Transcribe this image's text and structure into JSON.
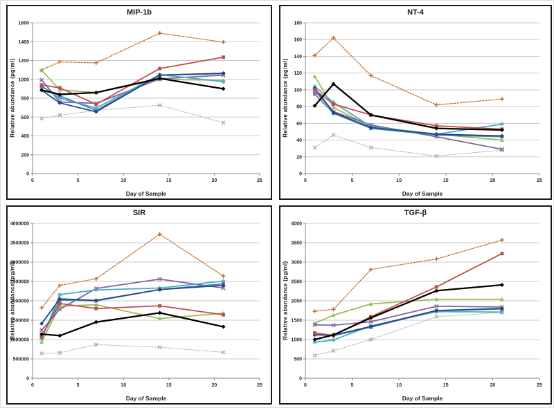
{
  "page": {
    "background": "#ffffff"
  },
  "series_styles": [
    {
      "key": "gray-dashed",
      "color": "#ADADAD",
      "marker": "x",
      "dash": "2,2",
      "width": 1
    },
    {
      "key": "orange-dashed",
      "color": "#BE6A2A",
      "marker": "plus",
      "dash": "2,2",
      "width": 1.3
    },
    {
      "key": "green",
      "color": "#9BBB59",
      "marker": "triangle",
      "dash": "",
      "width": 1.8
    },
    {
      "key": "purple",
      "color": "#8064A2",
      "marker": "x",
      "dash": "",
      "width": 1.8
    },
    {
      "key": "cyan",
      "color": "#4BACC6",
      "marker": "asterisk",
      "dash": "",
      "width": 1.8
    },
    {
      "key": "blue",
      "color": "#4F81BD",
      "marker": "square",
      "dash": "",
      "width": 1.8
    },
    {
      "key": "navy",
      "color": "#1F497D",
      "marker": "diamond",
      "dash": "",
      "width": 1.8
    },
    {
      "key": "red",
      "color": "#C0504D",
      "marker": "square",
      "dash": "",
      "width": 1.8
    },
    {
      "key": "black",
      "color": "#000000",
      "marker": "diamond",
      "dash": "",
      "width": 2.3
    }
  ],
  "chart_data": [
    {
      "type": "line",
      "title": "MIP-1b",
      "xlabel": "Day of Sample",
      "ylabel": "Relative abundance (pg/ml)",
      "x": [
        1,
        3,
        7,
        14,
        21
      ],
      "xlim": [
        0,
        25
      ],
      "xtick_step": 5,
      "ylim": [
        0,
        1600
      ],
      "ytick_step": 200,
      "grid": "horizontal",
      "legend": "none",
      "series": [
        {
          "name": "gray-dashed",
          "values": [
            585,
            620,
            670,
            725,
            540
          ]
        },
        {
          "name": "orange-dashed",
          "values": [
            1100,
            1185,
            1175,
            1490,
            1395
          ]
        },
        {
          "name": "green",
          "values": [
            1095,
            890,
            860,
            1000,
            990
          ]
        },
        {
          "name": "purple",
          "values": [
            995,
            760,
            745,
            1005,
            1045
          ]
        },
        {
          "name": "cyan",
          "values": [
            930,
            800,
            695,
            1050,
            975
          ]
        },
        {
          "name": "blue",
          "values": [
            920,
            825,
            670,
            1045,
            1060
          ]
        },
        {
          "name": "navy",
          "values": [
            885,
            750,
            655,
            1045,
            1065
          ]
        },
        {
          "name": "red",
          "values": [
            940,
            910,
            735,
            1115,
            1235
          ]
        },
        {
          "name": "black",
          "values": [
            885,
            840,
            860,
            1010,
            900
          ]
        }
      ]
    },
    {
      "type": "line",
      "title": "NT-4",
      "xlabel": "Day of Sample",
      "ylabel": "Relative abundance (pg/ml)",
      "x": [
        1,
        3,
        7,
        14,
        21
      ],
      "xlim": [
        0,
        25
      ],
      "xtick_step": 5,
      "ylim": [
        0,
        180
      ],
      "ytick_step": 20,
      "grid": "horizontal",
      "legend": "none",
      "series": [
        {
          "name": "gray-dashed",
          "values": [
            31,
            46,
            31,
            21,
            28
          ]
        },
        {
          "name": "orange-dashed",
          "values": [
            141,
            162,
            117,
            82,
            89
          ]
        },
        {
          "name": "green",
          "values": [
            116,
            79,
            56,
            47,
            40
          ]
        },
        {
          "name": "purple",
          "values": [
            99,
            74,
            58,
            44,
            29
          ]
        },
        {
          "name": "cyan",
          "values": [
            104,
            85,
            56,
            47,
            59
          ]
        },
        {
          "name": "blue",
          "values": [
            95,
            72,
            54,
            46,
            44
          ]
        },
        {
          "name": "navy",
          "values": [
            102,
            73,
            55,
            47,
            45
          ]
        },
        {
          "name": "red",
          "values": [
            100,
            83,
            70,
            57,
            53
          ]
        },
        {
          "name": "black",
          "values": [
            81,
            107,
            70,
            54,
            52
          ]
        }
      ]
    },
    {
      "type": "line",
      "title": "SIR",
      "xlabel": "Day of Sample",
      "ylabel": "Relative abundance (pg/ml)",
      "x": [
        1,
        3,
        7,
        14,
        21
      ],
      "xlim": [
        0,
        25
      ],
      "xtick_step": 5,
      "ylim": [
        0,
        4000000
      ],
      "ytick_step": 500000,
      "grid": "horizontal",
      "legend": "none",
      "series": [
        {
          "name": "gray-dashed",
          "values": [
            640000,
            660000,
            870000,
            800000,
            670000
          ]
        },
        {
          "name": "orange-dashed",
          "values": [
            1820000,
            2400000,
            2570000,
            3720000,
            2640000
          ]
        },
        {
          "name": "green",
          "values": [
            940000,
            1860000,
            1900000,
            1540000,
            1680000
          ]
        },
        {
          "name": "purple",
          "values": [
            1240000,
            1780000,
            2320000,
            2560000,
            2330000
          ]
        },
        {
          "name": "cyan",
          "values": [
            1010000,
            2160000,
            2280000,
            2330000,
            2510000
          ]
        },
        {
          "name": "blue",
          "values": [
            1070000,
            2020000,
            2000000,
            2290000,
            2440000
          ]
        },
        {
          "name": "navy",
          "values": [
            1410000,
            2050000,
            2010000,
            2290000,
            2400000
          ]
        },
        {
          "name": "red",
          "values": [
            1070000,
            1930000,
            1800000,
            1870000,
            1640000
          ]
        },
        {
          "name": "black",
          "values": [
            1140000,
            1100000,
            1450000,
            1690000,
            1330000
          ]
        }
      ]
    },
    {
      "type": "line",
      "title": "TGF-β",
      "xlabel": "Day of Sample",
      "ylabel": "Relative abundance (pg/ml)",
      "x": [
        1,
        3,
        7,
        14,
        21
      ],
      "xlim": [
        0,
        25
      ],
      "xtick_step": 5,
      "ylim": [
        0,
        4000
      ],
      "ytick_step": 500,
      "grid": "horizontal",
      "legend": "none",
      "series": [
        {
          "name": "gray-dashed",
          "values": [
            590,
            710,
            1000,
            1590,
            1700
          ]
        },
        {
          "name": "orange-dashed",
          "values": [
            1730,
            1780,
            2810,
            3080,
            3570
          ]
        },
        {
          "name": "green",
          "values": [
            1420,
            1630,
            1920,
            2040,
            2040
          ]
        },
        {
          "name": "purple",
          "values": [
            1380,
            1370,
            1460,
            1860,
            1840
          ]
        },
        {
          "name": "cyan",
          "values": [
            930,
            990,
            1350,
            1720,
            1710
          ]
        },
        {
          "name": "blue",
          "values": [
            1130,
            1100,
            1320,
            1740,
            1790
          ]
        },
        {
          "name": "navy",
          "values": [
            1120,
            1110,
            1340,
            1750,
            1800
          ]
        },
        {
          "name": "red",
          "values": [
            1170,
            1110,
            1590,
            2360,
            3220
          ]
        },
        {
          "name": "black",
          "values": [
            1000,
            1120,
            1560,
            2260,
            2410
          ]
        }
      ]
    }
  ]
}
